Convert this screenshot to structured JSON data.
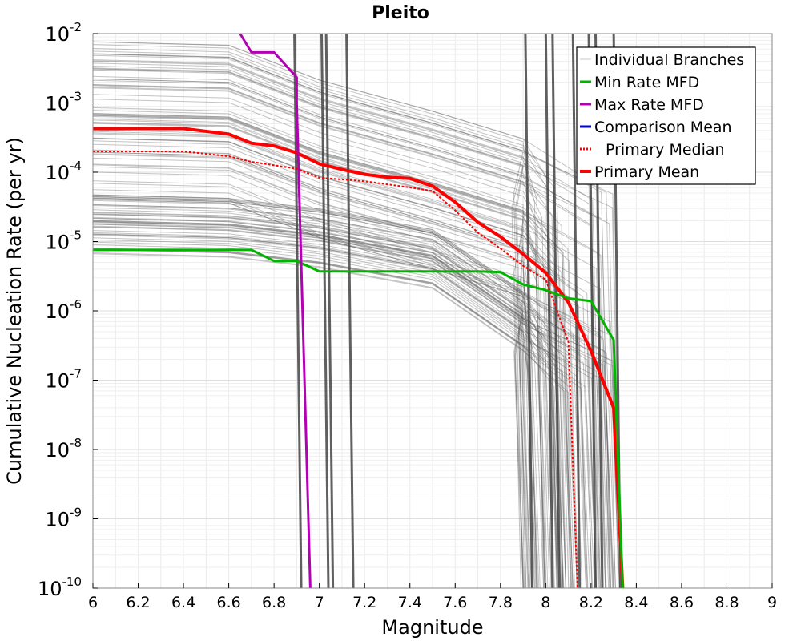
{
  "chart_data": {
    "type": "line",
    "title": "Pleito",
    "xlabel": "Magnitude",
    "ylabel": "Cumulative Nucleation Rate (per yr)",
    "xlim": [
      6,
      9
    ],
    "ylim_log10": [
      -10,
      -2
    ],
    "yscale": "log",
    "grid": true,
    "legend_position": "top-right",
    "x_ticks": [
      "6",
      "6.2",
      "6.4",
      "6.6",
      "6.8",
      "7",
      "7.2",
      "7.4",
      "7.6",
      "7.8",
      "8",
      "8.2",
      "8.4",
      "8.6",
      "8.8",
      "9"
    ],
    "y_ticks": [
      {
        "base": "10",
        "exp": "-2",
        "value": -2
      },
      {
        "base": "10",
        "exp": "-3",
        "value": -3
      },
      {
        "base": "10",
        "exp": "-4",
        "value": -4
      },
      {
        "base": "10",
        "exp": "-5",
        "value": -5
      },
      {
        "base": "10",
        "exp": "-6",
        "value": -6
      },
      {
        "base": "10",
        "exp": "-7",
        "value": -7
      },
      {
        "base": "10",
        "exp": "-8",
        "value": -8
      },
      {
        "base": "10",
        "exp": "-9",
        "value": -9
      },
      {
        "base": "10",
        "exp": "-10",
        "value": -10
      }
    ],
    "legend": [
      {
        "label": "Individual Branches",
        "color": "#c8c8c8",
        "style": "thin"
      },
      {
        "label": "Min Rate MFD",
        "color": "#00b400",
        "style": "solid"
      },
      {
        "label": "Max Rate MFD",
        "color": "#b400b4",
        "style": "solid"
      },
      {
        "label": "Comparison Mean",
        "color": "#0000dc",
        "style": "solid"
      },
      {
        "label": "Primary Median",
        "color": "#ff0000",
        "style": "dotted"
      },
      {
        "label": "Primary Mean",
        "color": "#ff0000",
        "style": "thick"
      }
    ],
    "series": [
      {
        "name": "Primary Mean",
        "color": "#ff0000",
        "width": 4,
        "dash": "",
        "points": [
          [
            6.0,
            -3.37
          ],
          [
            6.4,
            -3.37
          ],
          [
            6.6,
            -3.45
          ],
          [
            6.7,
            -3.58
          ],
          [
            6.8,
            -3.62
          ],
          [
            6.9,
            -3.72
          ],
          [
            7.0,
            -3.88
          ],
          [
            7.1,
            -3.96
          ],
          [
            7.2,
            -4.03
          ],
          [
            7.3,
            -4.07
          ],
          [
            7.4,
            -4.09
          ],
          [
            7.5,
            -4.2
          ],
          [
            7.6,
            -4.43
          ],
          [
            7.7,
            -4.72
          ],
          [
            7.8,
            -4.93
          ],
          [
            7.9,
            -5.18
          ],
          [
            8.0,
            -5.45
          ],
          [
            8.1,
            -5.88
          ],
          [
            8.2,
            -6.58
          ],
          [
            8.3,
            -7.4
          ],
          [
            8.34,
            -10.0
          ]
        ]
      },
      {
        "name": "Primary Median",
        "color": "#ff0000",
        "width": 2,
        "dash": "3,2",
        "points": [
          [
            6.0,
            -3.7
          ],
          [
            6.4,
            -3.7
          ],
          [
            6.6,
            -3.77
          ],
          [
            6.7,
            -3.85
          ],
          [
            6.8,
            -3.9
          ],
          [
            6.9,
            -3.95
          ],
          [
            7.0,
            -4.08
          ],
          [
            7.2,
            -4.13
          ],
          [
            7.4,
            -4.22
          ],
          [
            7.5,
            -4.27
          ],
          [
            7.6,
            -4.55
          ],
          [
            7.7,
            -4.87
          ],
          [
            7.8,
            -5.1
          ],
          [
            7.9,
            -5.35
          ],
          [
            8.0,
            -5.55
          ],
          [
            8.1,
            -6.45
          ],
          [
            8.14,
            -10.0
          ]
        ]
      },
      {
        "name": "Min Rate MFD",
        "color": "#00b400",
        "width": 3,
        "dash": "",
        "points": [
          [
            6.0,
            -5.12
          ],
          [
            6.7,
            -5.12
          ],
          [
            6.8,
            -5.28
          ],
          [
            6.9,
            -5.28
          ],
          [
            7.0,
            -5.43
          ],
          [
            7.7,
            -5.43
          ],
          [
            7.8,
            -5.44
          ],
          [
            7.9,
            -5.62
          ],
          [
            8.0,
            -5.7
          ],
          [
            8.1,
            -5.82
          ],
          [
            8.2,
            -5.86
          ],
          [
            8.3,
            -6.42
          ],
          [
            8.34,
            -10.0
          ]
        ]
      },
      {
        "name": "Max Rate MFD",
        "color": "#b400b4",
        "width": 3,
        "dash": "",
        "points": [
          [
            6.65,
            -2.0
          ],
          [
            6.7,
            -2.27
          ],
          [
            6.8,
            -2.27
          ],
          [
            6.9,
            -2.63
          ],
          [
            6.9,
            -3.0
          ],
          [
            6.96,
            -10.0
          ]
        ]
      }
    ]
  }
}
